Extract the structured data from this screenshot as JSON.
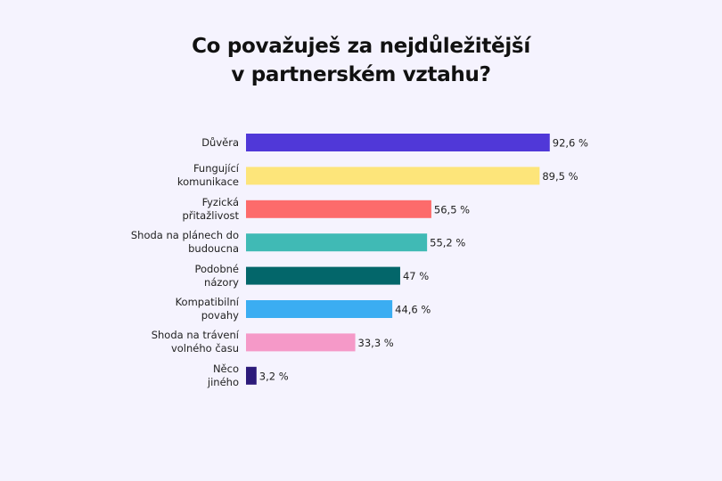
{
  "chart_data": {
    "type": "bar",
    "orientation": "horizontal",
    "title": "Co považuješ za nejdůležitější\nv partnerském vztahu?",
    "categories": [
      "Důvěra",
      "Fungující\nkomunikace",
      "Fyzická\npřitažlivost",
      "Shoda na plánech do\nbudoucna",
      "Podobné\nnázory",
      "Kompatibilní\npovahy",
      "Shoda na trávení\nvolného času",
      "Něco\njiného"
    ],
    "values": [
      92.6,
      89.5,
      56.5,
      55.2,
      47,
      44.6,
      33.3,
      3.2
    ],
    "value_labels": [
      "92,6 %",
      "89,5 %",
      "56,5 %",
      "55,2 %",
      "47 %",
      "44,6 %",
      "33,3 %",
      "3,2 %"
    ],
    "colors": [
      "#5038d8",
      "#fde57a",
      "#fd6b6b",
      "#40bab5",
      "#03666a",
      "#3badf2",
      "#f599c8",
      "#2c1a7a"
    ]
  }
}
